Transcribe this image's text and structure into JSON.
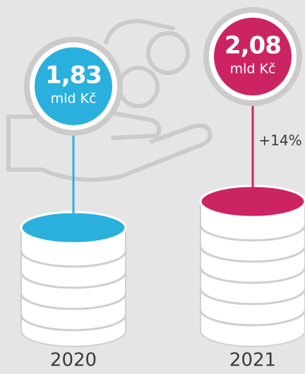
{
  "items": [
    {
      "value": "1,83",
      "unit": "mld Kč",
      "year": "2020"
    },
    {
      "value": "2,08",
      "unit": "mld Kč",
      "year": "2021"
    }
  ],
  "change": "+14%"
}
